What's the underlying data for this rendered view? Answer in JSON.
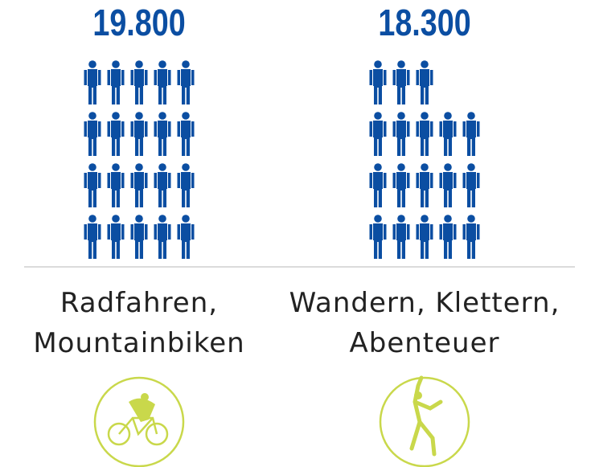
{
  "chart_data": {
    "type": "pictogram",
    "categories": [
      "Radfahren, Mountainbiken",
      "Wandern, Klettern, Abenteuer"
    ],
    "values": [
      19800,
      18300
    ],
    "value_labels": [
      "19.800",
      "18.300"
    ],
    "color": "#0b4ea2"
  }
}
